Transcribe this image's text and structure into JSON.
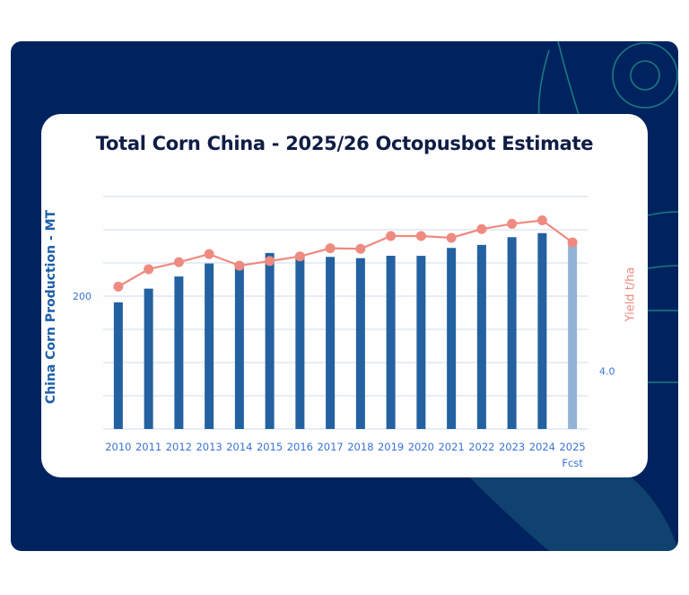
{
  "chart_data": {
    "type": "bar",
    "title": "Total Corn China - 2025/26 Octopusbot Estimate",
    "xlabel": "",
    "ylabel": "China Corn Production - MT",
    "ylabel_right": "Yield t/ha",
    "categories": [
      "2010",
      "2011",
      "2012",
      "2013",
      "2014",
      "2015",
      "2016",
      "2017",
      "2018",
      "2019",
      "2020",
      "2021",
      "2022",
      "2023",
      "2024",
      "2025"
    ],
    "category_sublabels": {
      "2025": "Fcst"
    },
    "ylim": [
      0,
      350
    ],
    "ylim_right": [
      3.0,
      7.0
    ],
    "y_ticks_labeled": [
      {
        "value": 200,
        "label": "200"
      }
    ],
    "y_right_ticks_labeled": [
      {
        "value": 4.0,
        "label": "4.0"
      }
    ],
    "gridlines": [
      0,
      50,
      100,
      150,
      200,
      250,
      300,
      350
    ],
    "grid": true,
    "legend": "none",
    "series": [
      {
        "name": "China Corn Production - MT",
        "type": "bar",
        "axis": "left",
        "color": "#2361a1",
        "forecast_color": "#93b3d6",
        "values": [
          190.7,
          211.3,
          229.6,
          249.2,
          249.8,
          265.0,
          263.6,
          259.1,
          257.2,
          260.8,
          260.7,
          272.6,
          277.2,
          288.8,
          294.9,
          277.0
        ]
      },
      {
        "name": "Yield t/ha",
        "type": "line",
        "axis": "right",
        "color": "#ef8a80",
        "values": [
          5.45,
          5.75,
          5.87,
          6.01,
          5.81,
          5.89,
          5.97,
          6.11,
          6.1,
          6.32,
          6.32,
          6.29,
          6.44,
          6.53,
          6.59,
          6.21
        ]
      }
    ]
  },
  "colors": {
    "panel_background": "#00235f",
    "card_background": "#fefefe",
    "title_color": "#0e1d45",
    "tick_color": "#3a73d6",
    "gridline_color": "#d9e3f0",
    "decor_line_color": "#1f8a86"
  }
}
